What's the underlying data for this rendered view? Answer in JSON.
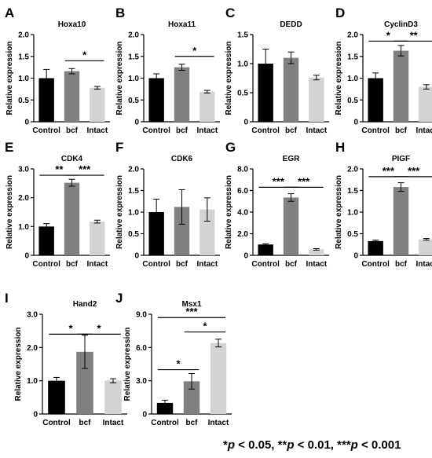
{
  "chart_data": [
    {
      "panel": "A",
      "type": "bar",
      "title": "Hoxa10",
      "ylabel": "Relative expression",
      "categories": [
        "Control",
        "bcf",
        "Intact"
      ],
      "values": [
        1.0,
        1.16,
        0.78
      ],
      "errors": [
        0.2,
        0.06,
        0.03
      ],
      "ylim": [
        0,
        2.0
      ],
      "yticks": [
        0,
        0.5,
        1.0,
        1.5,
        2.0
      ],
      "tick_labels": [
        "0",
        "0.5",
        "1.0",
        "1.5",
        "2.0"
      ],
      "significance": [
        {
          "from": 1,
          "to": 2,
          "label": "*",
          "level": 1.4
        }
      ]
    },
    {
      "panel": "B",
      "type": "bar",
      "title": "Hoxa11",
      "ylabel": "Relative expression",
      "categories": [
        "Control",
        "bcf",
        "Intact"
      ],
      "values": [
        1.0,
        1.25,
        0.69
      ],
      "errors": [
        0.1,
        0.07,
        0.03
      ],
      "ylim": [
        0,
        2.0
      ],
      "yticks": [
        0,
        0.5,
        1.0,
        1.5,
        2.0
      ],
      "tick_labels": [
        "0",
        "0.5",
        "1.0",
        "1.5",
        "2.0"
      ],
      "significance": [
        {
          "from": 1,
          "to": 2,
          "label": "*",
          "level": 1.5
        }
      ]
    },
    {
      "panel": "C",
      "type": "bar",
      "title": "DEDD",
      "ylabel": "Relative expression",
      "categories": [
        "Control",
        "bcf",
        "Intact"
      ],
      "values": [
        1.0,
        1.1,
        0.76
      ],
      "errors": [
        0.25,
        0.1,
        0.04
      ],
      "ylim": [
        0,
        1.5
      ],
      "yticks": [
        0,
        0.5,
        1.0,
        1.5
      ],
      "tick_labels": [
        "0",
        "0.5",
        "1.0",
        "1.5"
      ],
      "significance": []
    },
    {
      "panel": "D",
      "type": "bar",
      "title": "CyclinD3",
      "ylabel": "Relative expression",
      "categories": [
        "Control",
        "bcf",
        "Intact"
      ],
      "values": [
        1.0,
        1.63,
        0.8
      ],
      "errors": [
        0.12,
        0.12,
        0.05
      ],
      "ylim": [
        0,
        2.0
      ],
      "yticks": [
        0,
        0.5,
        1.0,
        1.5,
        2.0
      ],
      "tick_labels": [
        "0",
        "0.5",
        "1.0",
        "1.5",
        "2.0"
      ],
      "significance": [
        {
          "from": 0,
          "to": 1,
          "label": "*",
          "level": 1.85
        },
        {
          "from": 1,
          "to": 2,
          "label": "**",
          "level": 1.85
        }
      ]
    },
    {
      "panel": "E",
      "type": "bar",
      "title": "CDK4",
      "ylabel": "Relative expression",
      "categories": [
        "Control",
        "bcf",
        "Intact"
      ],
      "values": [
        1.0,
        2.52,
        1.17
      ],
      "errors": [
        0.1,
        0.12,
        0.05
      ],
      "ylim": [
        0,
        3.0
      ],
      "yticks": [
        0,
        1.0,
        2.0,
        3.0
      ],
      "tick_labels": [
        "0",
        "1.0",
        "2.0",
        "3.0"
      ],
      "significance": [
        {
          "from": 0,
          "to": 1,
          "label": "**",
          "level": 2.78
        },
        {
          "from": 1,
          "to": 2,
          "label": "***",
          "level": 2.78
        }
      ]
    },
    {
      "panel": "F",
      "type": "bar",
      "title": "CDK6",
      "ylabel": "Relative expression",
      "categories": [
        "Control",
        "bcf",
        "Intact"
      ],
      "values": [
        1.0,
        1.12,
        1.06
      ],
      "errors": [
        0.3,
        0.4,
        0.27
      ],
      "ylim": [
        0,
        2.0
      ],
      "yticks": [
        0,
        0.5,
        1.0,
        1.5,
        2.0
      ],
      "tick_labels": [
        "0",
        "0.5",
        "1.0",
        "1.5",
        "2.0"
      ],
      "significance": []
    },
    {
      "panel": "G",
      "type": "bar",
      "title": "EGR",
      "ylabel": "Relative expression",
      "categories": [
        "Control",
        "bcf",
        "Intact"
      ],
      "values": [
        1.0,
        5.35,
        0.55
      ],
      "errors": [
        0.07,
        0.35,
        0.07
      ],
      "ylim": [
        0,
        8.0
      ],
      "yticks": [
        0,
        2.0,
        4.0,
        6.0,
        8.0
      ],
      "tick_labels": [
        "0",
        "2.0",
        "4.0",
        "6.0",
        "8.0"
      ],
      "significance": [
        {
          "from": 0,
          "to": 1,
          "label": "***",
          "level": 6.3
        },
        {
          "from": 1,
          "to": 2,
          "label": "***",
          "level": 6.3
        }
      ]
    },
    {
      "panel": "H",
      "type": "bar",
      "title": "PIGF",
      "ylabel": "Relative expression",
      "categories": [
        "Control",
        "bcf",
        "Intact"
      ],
      "values": [
        0.33,
        1.58,
        0.37
      ],
      "errors": [
        0.02,
        0.1,
        0.02
      ],
      "ylim": [
        0,
        2.0
      ],
      "yticks": [
        0,
        0.5,
        1.0,
        1.5,
        2.0
      ],
      "tick_labels": [
        "0",
        "0.5",
        "1.0",
        "1.5",
        "2.0"
      ],
      "significance": [
        {
          "from": 0,
          "to": 1,
          "label": "***",
          "level": 1.82
        },
        {
          "from": 1,
          "to": 2,
          "label": "***",
          "level": 1.82
        }
      ]
    },
    {
      "panel": "I",
      "type": "bar",
      "title": "Hand2",
      "ylabel": "Relative expression",
      "categories": [
        "Control",
        "bcf",
        "Intact"
      ],
      "values": [
        1.0,
        1.87,
        1.0
      ],
      "errors": [
        0.1,
        0.5,
        0.06
      ],
      "ylim": [
        0,
        3.0
      ],
      "yticks": [
        0,
        1.0,
        2.0,
        3.0
      ],
      "tick_labels": [
        "0",
        "1.0",
        "2.0",
        "3.0"
      ],
      "significance": [
        {
          "from": 0,
          "to": 1,
          "label": "*",
          "level": 2.4
        },
        {
          "from": 1,
          "to": 2,
          "label": "*",
          "level": 2.4
        }
      ]
    },
    {
      "panel": "J",
      "type": "bar",
      "title": "Msx1",
      "ylabel": "Relative expression",
      "categories": [
        "Control",
        "bcf",
        "Intact"
      ],
      "values": [
        1.0,
        2.95,
        6.4
      ],
      "errors": [
        0.25,
        0.7,
        0.35
      ],
      "ylim": [
        0,
        9.0
      ],
      "yticks": [
        0,
        3.0,
        6.0,
        9.0
      ],
      "tick_labels": [
        "0",
        "3.0",
        "6.0",
        "9.0"
      ],
      "significance": [
        {
          "from": 0,
          "to": 1,
          "label": "*",
          "level": 4.0
        },
        {
          "from": 1,
          "to": 2,
          "label": "*",
          "level": 7.4
        },
        {
          "from": 0,
          "to": 2,
          "label": "***",
          "level": 8.7
        }
      ]
    }
  ],
  "bar_colors": [
    "#000000",
    "#808080",
    "#d3d3d3"
  ],
  "footnote": {
    "p1": "p",
    "t1": " < 0.05, **",
    "p2": "p",
    "t2": " < 0.01, ***",
    "p3": "p",
    "t3": " < 0.001",
    "lead": "*"
  }
}
